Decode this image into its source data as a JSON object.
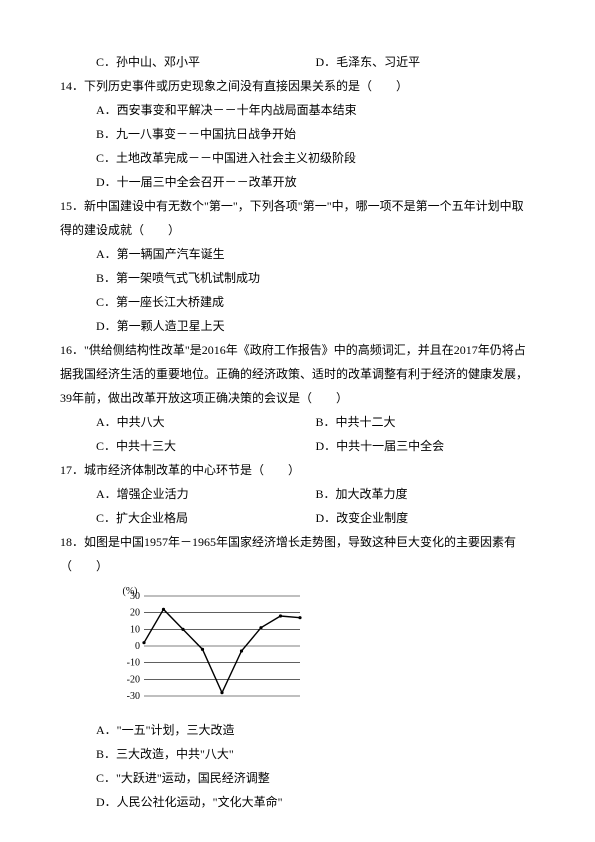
{
  "q13_options": {
    "c": "C．孙中山、邓小平",
    "d": "D．毛泽东、习近平"
  },
  "q14": {
    "stem": "14．下列历史事件或历史现象之间没有直接因果关系的是（　　）",
    "a": "A．西安事变和平解决－－十年内战局面基本结束",
    "b": "B．九一八事变－－中国抗日战争开始",
    "c": "C．土地改革完成－－中国进入社会主义初级阶段",
    "d": "D．十一届三中全会召开－－改革开放"
  },
  "q15": {
    "stem": "15．新中国建设中有无数个\"第一\"，下列各项\"第一\"中，哪一项不是第一个五年计划中取得的建设成就（　　）",
    "a": "A．第一辆国产汽车诞生",
    "b": "B．第一架喷气式飞机试制成功",
    "c": "C．第一座长江大桥建成",
    "d": "D．第一颗人造卫星上天"
  },
  "q16": {
    "stem": "16．\"供给侧结构性改革\"是2016年《政府工作报告》中的高频词汇，并且在2017年仍将占据我国经济生活的重要地位。正确的经济政策、适时的改革调整有利于经济的健康发展，39年前，做出改革开放这项正确决策的会议是（　　）",
    "a": "A．中共八大",
    "b": "B．中共十二大",
    "c": "C．中共十三大",
    "d": "D．中共十一届三中全会"
  },
  "q17": {
    "stem": "17．城市经济体制改革的中心环节是（　　）",
    "a": "A．增强企业活力",
    "b": "B．加大改革力度",
    "c": "C．扩大企业格局",
    "d": "D．改变企业制度"
  },
  "q18": {
    "stem": "18．如图是中国1957年－1965年国家经济增长走势图，导致这种巨大变化的主要因素有（　　）",
    "a": "A．\"一五\"计划，三大改造",
    "b": "B．三大改造，中共\"八大\"",
    "c": "C．\"大跃进\"运动，国民经济调整",
    "d": "D．人民公社化运动，\"文化大革命\""
  },
  "chart": {
    "type": "line",
    "width": 190,
    "height": 120,
    "ylim": [
      -30,
      30
    ],
    "ytick_step": 10,
    "ylabel": "(%)",
    "ylabels": [
      "30",
      "20",
      "10",
      "0",
      "-10",
      "-20",
      "-30"
    ],
    "x_count": 9,
    "values": [
      2,
      22,
      10,
      -2,
      -28,
      -3,
      11,
      18,
      17
    ],
    "line_color": "#000000",
    "grid_color": "#000000",
    "background_color": "#ffffff",
    "label_fontsize": 10
  }
}
